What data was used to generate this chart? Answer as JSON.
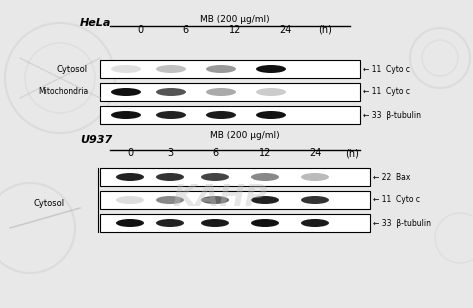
{
  "background_color": "#f0f0f0",
  "figure_bg": "#e8e8e8",
  "hela_label": "HeLa",
  "u937_label": "U937",
  "mb_label_hela": "MB (200 μg/ml)",
  "mb_label_u937": "MB (200 μg/ml)",
  "hela_timepoints": [
    "0",
    "6",
    "12",
    "24"
  ],
  "u937_timepoints": [
    "0",
    "3",
    "6",
    "12",
    "24"
  ],
  "h_label": "(h)",
  "hela_row_labels_left": [
    "Cytosol",
    "Mitochondria",
    ""
  ],
  "u937_row_labels_left": [
    "",
    "",
    "Cytosol",
    ""
  ],
  "cytosol_label": "Cytosol",
  "hela_row_labels_right": [
    "← 11  Cyto c",
    "← 11  Cyto c",
    "← 33  β-tubulin"
  ],
  "u937_row_labels_right": [
    "← 22  Bax",
    "← 11  Cyto c",
    "← 33  β-tubulin"
  ],
  "watermark_text": "KAHP",
  "panel_bg": "#ffffff",
  "text_color": "#000000",
  "arrow_color": "#000000",
  "border_color": "#000000",
  "band_color_dark": "#1a1a1a",
  "band_color_mid": "#555555",
  "band_color_light": "#aaaaaa",
  "band_color_faint": "#cccccc"
}
